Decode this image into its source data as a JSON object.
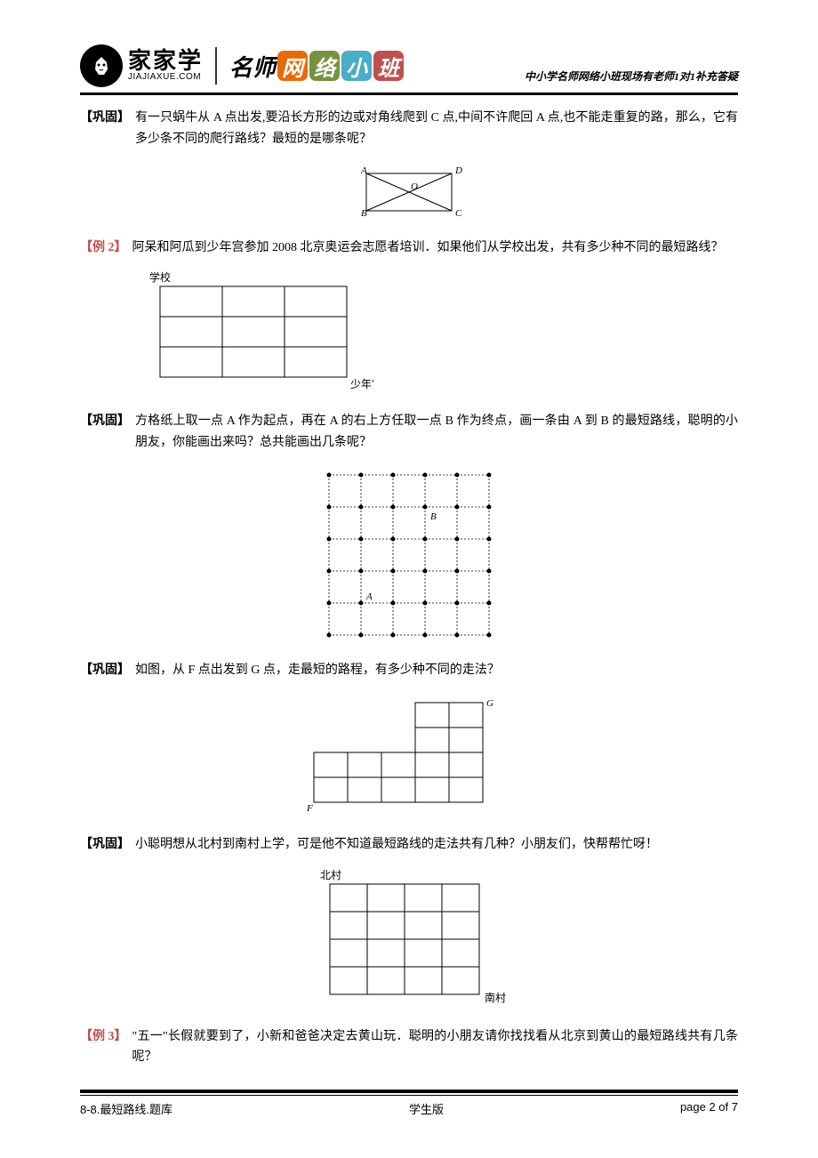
{
  "header": {
    "logo_cn": "家家学",
    "logo_en": "JIAJIAXUE.COM",
    "banner_prefix": "名师",
    "banner_bubbles": [
      "网",
      "络",
      "小",
      "班"
    ],
    "bubble_colors": [
      "#e46c0a",
      "#76933c",
      "#4bacc6",
      "#c0504d"
    ],
    "subtitle": "中小学名师网络小班现场有老师1对1补充答疑"
  },
  "problems": [
    {
      "tag": "【巩固】",
      "tag_color": "black",
      "text": "有一只蜗牛从 A 点出发,要沿长方形的边或对角线爬到 C 点,中间不许爬回 A 点,也不能走重复的路，那么，它有多少条不同的爬行路线？最短的是哪条呢？",
      "figure": "rectangle-diag"
    },
    {
      "tag": "【例 2】",
      "tag_color": "red",
      "text": "阿呆和阿瓜到少年宫参加 2008 北京奥运会志愿者培训．如果他们从学校出发，共有多少种不同的最短路线？",
      "figure": "grid-3x3-school"
    },
    {
      "tag": "【巩固】",
      "tag_color": "black",
      "text": "方格纸上取一点 A 作为起点，再在 A 的右上方任取一点 B 作为终点，画一条由 A 到 B 的最短路线，聪明的小朋友，你能画出来吗？总共能画出几条呢？",
      "figure": "grid-5x5-dots"
    },
    {
      "tag": "【巩固】",
      "tag_color": "black",
      "text": "如图，从 F 点出发到 G 点，走最短的路程，有多少种不同的走法？",
      "figure": "lshape-grid"
    },
    {
      "tag": "【巩固】",
      "tag_color": "black",
      "text": "小聪明想从北村到南村上学，可是他不知道最短路线的走法共有几种？小朋友们，快帮帮忙呀！",
      "figure": "grid-4x4-village"
    },
    {
      "tag": "【例 3】",
      "tag_color": "red",
      "text": "\"五一\"长假就要到了，小新和爸爸决定去黄山玩．聪明的小朋友请你找找看从北京到黄山的最短路线共有几条呢？",
      "figure": null
    }
  ],
  "labels": {
    "A": "A",
    "B": "B",
    "C": "C",
    "D": "D",
    "O": "O",
    "F": "F",
    "G": "G",
    "school": "学校",
    "youth": "少年宫",
    "north": "北村",
    "south": "南村"
  },
  "footer": {
    "left": "8-8.最短路线.题库",
    "center": "学生版",
    "right": "page 2 of 7"
  },
  "colors": {
    "stroke": "#000000",
    "red": "#c0504d"
  }
}
